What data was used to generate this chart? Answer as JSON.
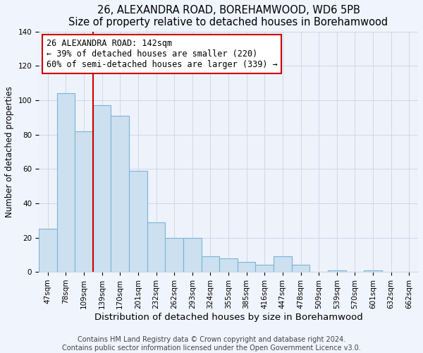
{
  "title": "26, ALEXANDRA ROAD, BOREHAMWOOD, WD6 5PB",
  "subtitle": "Size of property relative to detached houses in Borehamwood",
  "xlabel": "Distribution of detached houses by size in Borehamwood",
  "ylabel": "Number of detached properties",
  "bar_labels": [
    "47sqm",
    "78sqm",
    "109sqm",
    "139sqm",
    "170sqm",
    "201sqm",
    "232sqm",
    "262sqm",
    "293sqm",
    "324sqm",
    "355sqm",
    "385sqm",
    "416sqm",
    "447sqm",
    "478sqm",
    "509sqm",
    "539sqm",
    "570sqm",
    "601sqm",
    "632sqm",
    "662sqm"
  ],
  "bar_values": [
    25,
    104,
    82,
    97,
    91,
    59,
    29,
    20,
    20,
    9,
    8,
    6,
    4,
    9,
    4,
    0,
    1,
    0,
    1,
    0,
    0
  ],
  "bar_color": "#cce0f0",
  "bar_edge_color": "#7ab4d8",
  "vline_x_index": 3,
  "vline_color": "#cc0000",
  "annotation_text": "26 ALEXANDRA ROAD: 142sqm\n← 39% of detached houses are smaller (220)\n60% of semi-detached houses are larger (339) →",
  "annotation_box_color": "white",
  "annotation_box_edge_color": "#cc0000",
  "ylim": [
    0,
    140
  ],
  "yticks": [
    0,
    20,
    40,
    60,
    80,
    100,
    120,
    140
  ],
  "footer_line1": "Contains HM Land Registry data © Crown copyright and database right 2024.",
  "footer_line2": "Contains public sector information licensed under the Open Government Licence v3.0.",
  "background_color": "#f0f4fc",
  "plot_bg_color": "#eef2fa",
  "grid_color": "#d0d8e8",
  "title_fontsize": 10.5,
  "subtitle_fontsize": 9.5,
  "xlabel_fontsize": 9.5,
  "ylabel_fontsize": 8.5,
  "tick_fontsize": 7.5,
  "annotation_fontsize": 8.5,
  "footer_fontsize": 7.0
}
